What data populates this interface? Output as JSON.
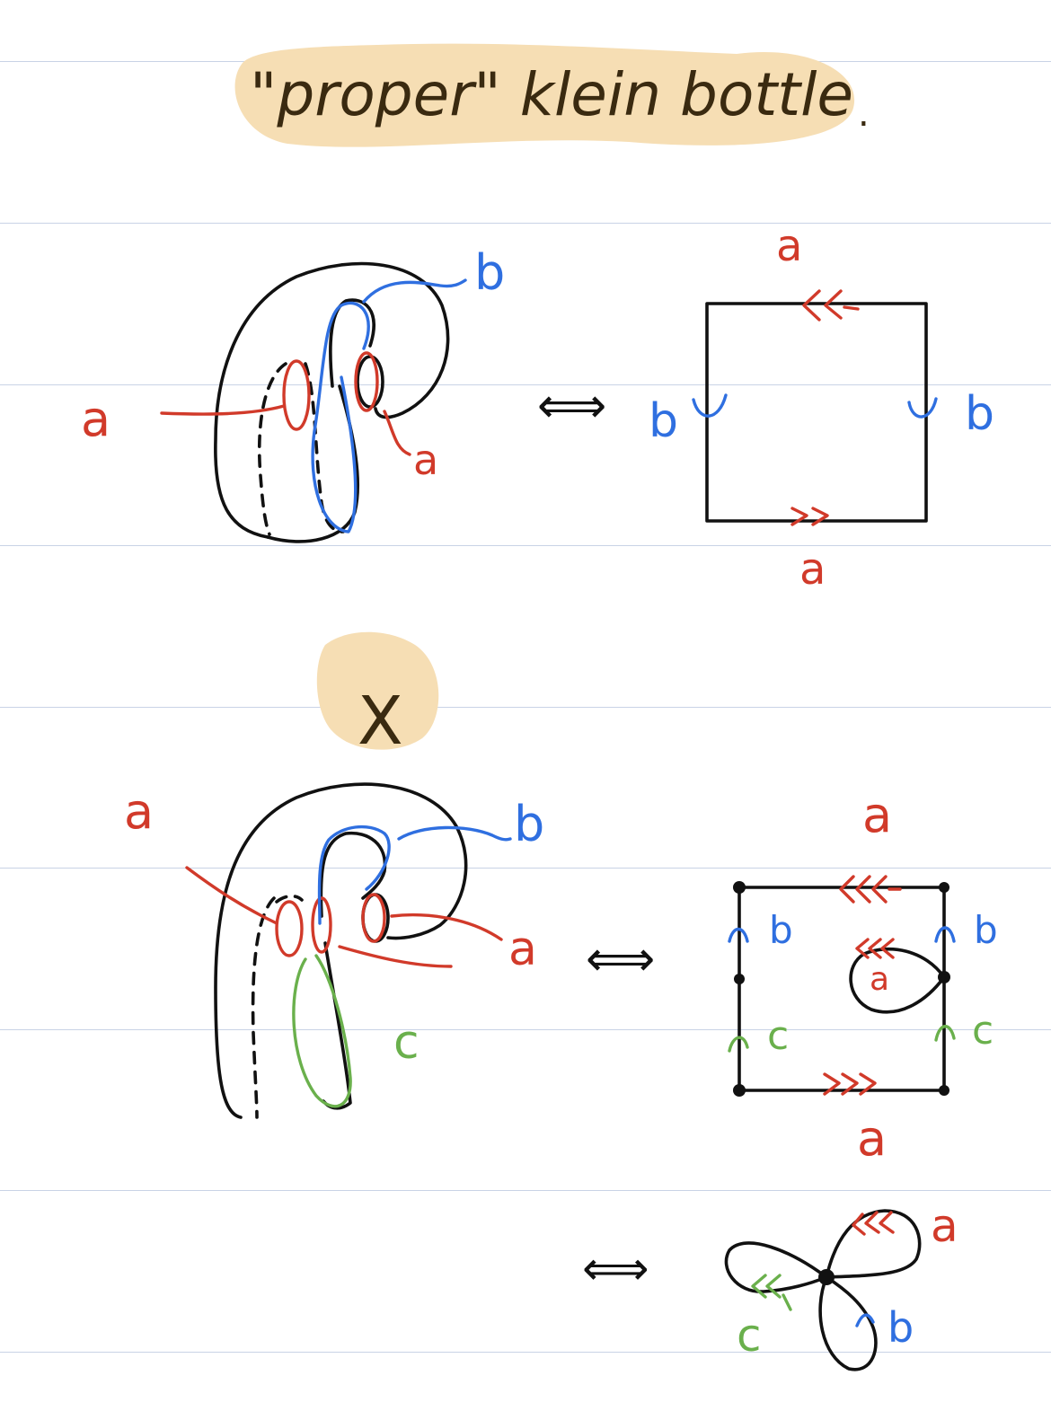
{
  "title": "\"proper\" klein bottle",
  "title_period": ".",
  "colors": {
    "ink": "#111111",
    "red": "#d13a2a",
    "blue": "#2f6fe0",
    "green": "#6ab04c",
    "highlight": "#f6deb4",
    "rule": "#c9d3e6"
  },
  "section1": {
    "labels": {
      "a_left": "a",
      "a_right": "a",
      "b_top": "b",
      "equiv": "⟺",
      "square_a_top": "a",
      "square_a_bottom": "a",
      "square_b_left": "b",
      "square_b_right": "b"
    }
  },
  "section2": {
    "heading": "X",
    "labels": {
      "a_topleft": "a",
      "b_top": "b",
      "a_right": "a",
      "c_label": "c",
      "equiv": "⟺",
      "square_a_top": "a",
      "square_a_bottom": "a",
      "square_a_inner": "a",
      "square_b_left": "b",
      "square_b_right": "b",
      "square_c_left": "c",
      "square_c_right": "c"
    }
  },
  "section3": {
    "labels": {
      "equiv": "⟺",
      "petal_a": "a",
      "petal_b": "b",
      "petal_c": "c"
    }
  }
}
